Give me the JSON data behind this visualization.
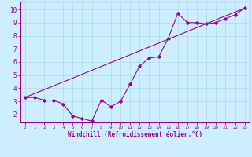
{
  "xlabel": "Windchill (Refroidissement éolien,°C)",
  "bg_color": "#cceeff",
  "line_color": "#990099",
  "grid_color": "#aadddd",
  "x_ticks": [
    0,
    1,
    2,
    3,
    4,
    5,
    6,
    7,
    8,
    9,
    10,
    11,
    12,
    13,
    14,
    15,
    16,
    17,
    18,
    19,
    20,
    21,
    22,
    23
  ],
  "y_ticks": [
    2,
    3,
    4,
    5,
    6,
    7,
    8,
    9,
    10
  ],
  "ylim": [
    1.4,
    10.6
  ],
  "xlim": [
    -0.5,
    23.5
  ],
  "series1_x": [
    0,
    1,
    2,
    3,
    4,
    5,
    6,
    7,
    8,
    9,
    10,
    11,
    12,
    13,
    14,
    15,
    16,
    17,
    18,
    19,
    20,
    21,
    22,
    23
  ],
  "series1_y": [
    3.3,
    3.3,
    3.1,
    3.1,
    2.8,
    1.9,
    1.7,
    1.5,
    3.1,
    2.6,
    3.0,
    4.3,
    5.7,
    6.3,
    6.4,
    7.8,
    9.7,
    9.0,
    9.0,
    8.9,
    9.0,
    9.3,
    9.6,
    10.1
  ],
  "series2_x": [
    0,
    23
  ],
  "series2_y": [
    3.3,
    10.1
  ]
}
